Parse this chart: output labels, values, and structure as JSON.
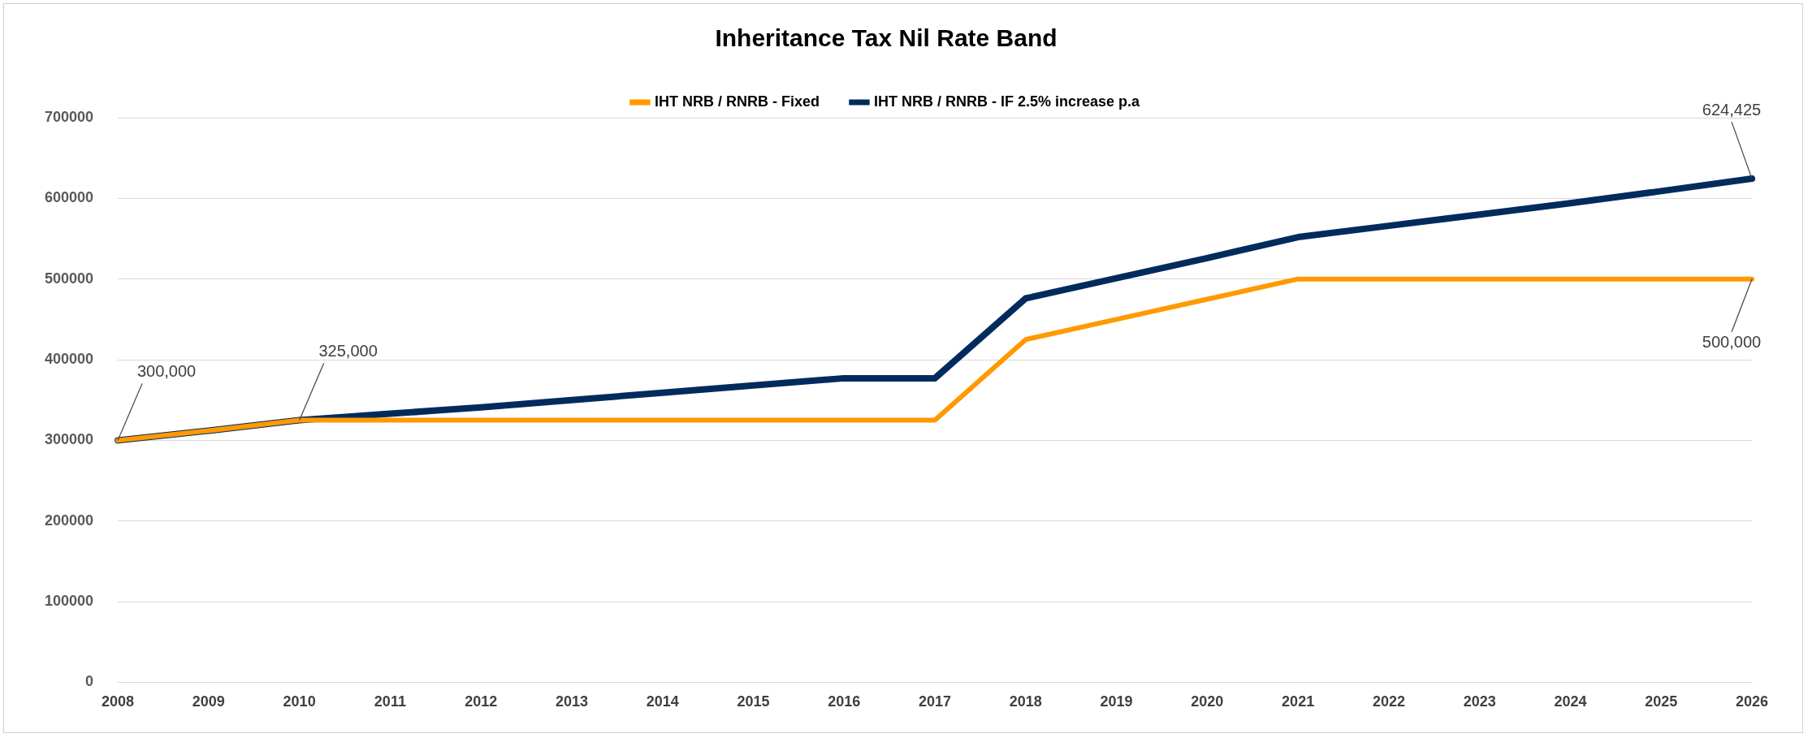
{
  "chart_data": {
    "type": "line",
    "title": "Inheritance Tax Nil Rate Band",
    "categories": [
      "2008",
      "2009",
      "2010",
      "2011",
      "2012",
      "2013",
      "2014",
      "2015",
      "2016",
      "2017",
      "2018",
      "2019",
      "2020",
      "2021",
      "2022",
      "2023",
      "2024",
      "2025",
      "2026"
    ],
    "series": [
      {
        "name": "IHT NRB / RNRB - Fixed",
        "color": "#ff9900",
        "values": [
          300000,
          312000,
          325000,
          325000,
          325000,
          325000,
          325000,
          325000,
          325000,
          325000,
          425000,
          450000,
          475000,
          500000,
          500000,
          500000,
          500000,
          500000,
          500000
        ]
      },
      {
        "name": "IHT NRB / RNRB - IF 2.5% increase p.a",
        "color": "#002b5c",
        "values": [
          300000,
          312000,
          325000,
          333000,
          341000,
          350000,
          359000,
          368000,
          377000,
          377000,
          476000,
          501000,
          526000,
          552000,
          566000,
          580000,
          594000,
          609000,
          624425
        ]
      }
    ],
    "ylim": [
      0,
      700000
    ],
    "yticks": [
      0,
      100000,
      200000,
      300000,
      400000,
      500000,
      600000,
      700000
    ],
    "grid": "y",
    "legend": "top",
    "marker": "none",
    "line_style": "solid",
    "annotations": [
      {
        "text": "300,000",
        "x": "2008",
        "y": 300000
      },
      {
        "text": "325,000",
        "x": "2010",
        "y": 325000
      },
      {
        "text": "624,425",
        "x": "2026",
        "y": 624425
      },
      {
        "text": "500,000",
        "x": "2026",
        "y": 500000
      }
    ]
  }
}
